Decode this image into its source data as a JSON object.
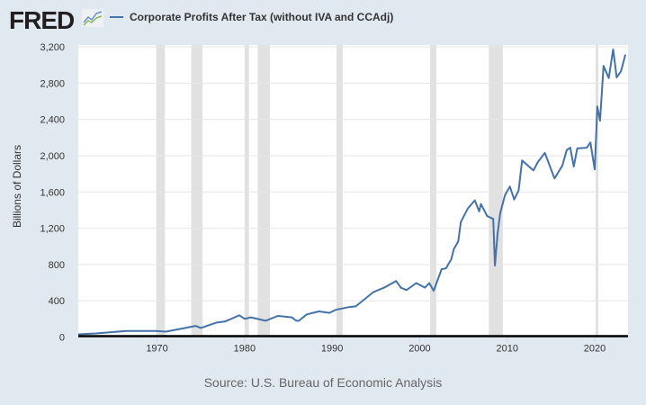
{
  "header": {
    "logo": "FRED",
    "logo_icon": "line-chart-icon"
  },
  "source": "Source: U.S. Bureau of Economic Analysis",
  "colors": {
    "background": "#e1e9f0",
    "series": "#4572a7",
    "recession": "#e1e1e1"
  },
  "chart_data": {
    "type": "line",
    "title": "",
    "xlabel": "",
    "ylabel": "Billions of Dollars",
    "xlim": [
      1961,
      2023.8
    ],
    "ylim": [
      0,
      3200
    ],
    "grid": true,
    "legend": "top",
    "x_ticks": [
      "1970",
      "1980",
      "1990",
      "2000",
      "2010",
      "2020"
    ],
    "y_ticks": [
      "0",
      "400",
      "800",
      "1,200",
      "1,600",
      "2,000",
      "2,400",
      "2,800",
      "3,200"
    ],
    "recessions": [
      [
        1969.9,
        1970.9
      ],
      [
        1973.9,
        1975.2
      ],
      [
        1980.0,
        1980.5
      ],
      [
        1981.5,
        1982.9
      ],
      [
        1990.5,
        1991.2
      ],
      [
        2001.2,
        2001.9
      ],
      [
        2007.9,
        2009.5
      ],
      [
        2020.1,
        2020.3
      ]
    ],
    "series": [
      {
        "name": "Corporate Profits After Tax (without IVA and CCAdj)",
        "x": [
          1961,
          1963,
          1966.5,
          1969.9,
          1971,
          1972.7,
          1974.4,
          1975,
          1976.8,
          1977.8,
          1979.4,
          1980,
          1980.7,
          1982.4,
          1983.8,
          1985.4,
          1985.9,
          1986.2,
          1987.1,
          1988.5,
          1989.7,
          1990.4,
          1991.9,
          1992.7,
          1994.7,
          1995.95,
          1997.3,
          1997.85,
          1998.5,
          1999.6,
          2000.6,
          2001.1,
          2001.6,
          2002.5,
          2003,
          2003.6,
          2003.9,
          2004.4,
          2004.7,
          2005.5,
          2006.3,
          2006.8,
          2007,
          2007.7,
          2008.4,
          2008.6,
          2008.9,
          2009.2,
          2009.75,
          2010.3,
          2010.8,
          2011.3,
          2011.7,
          2013,
          2013.5,
          2014.3,
          2015.4,
          2016.3,
          2016.8,
          2017.2,
          2017.6,
          2018,
          2019.1,
          2019.5,
          2020,
          2020.3,
          2020.6,
          2021,
          2021.6,
          2022.1,
          2022.5,
          2023,
          2023.5
        ],
        "y": [
          30,
          40,
          67,
          67,
          60,
          90,
          123,
          100,
          160,
          173,
          240,
          200,
          217,
          180,
          233,
          217,
          180,
          180,
          250,
          283,
          267,
          300,
          330,
          338,
          495,
          545,
          618,
          545,
          518,
          595,
          545,
          595,
          510,
          748,
          757,
          855,
          970,
          1055,
          1268,
          1418,
          1507,
          1385,
          1467,
          1335,
          1302,
          789,
          1137,
          1367,
          1566,
          1659,
          1516,
          1615,
          1947,
          1837,
          1930,
          2030,
          1748,
          1890,
          2062,
          2088,
          1880,
          2080,
          2088,
          2145,
          1848,
          2542,
          2386,
          2990,
          2856,
          3171,
          2863,
          2930,
          3115
        ]
      }
    ]
  }
}
